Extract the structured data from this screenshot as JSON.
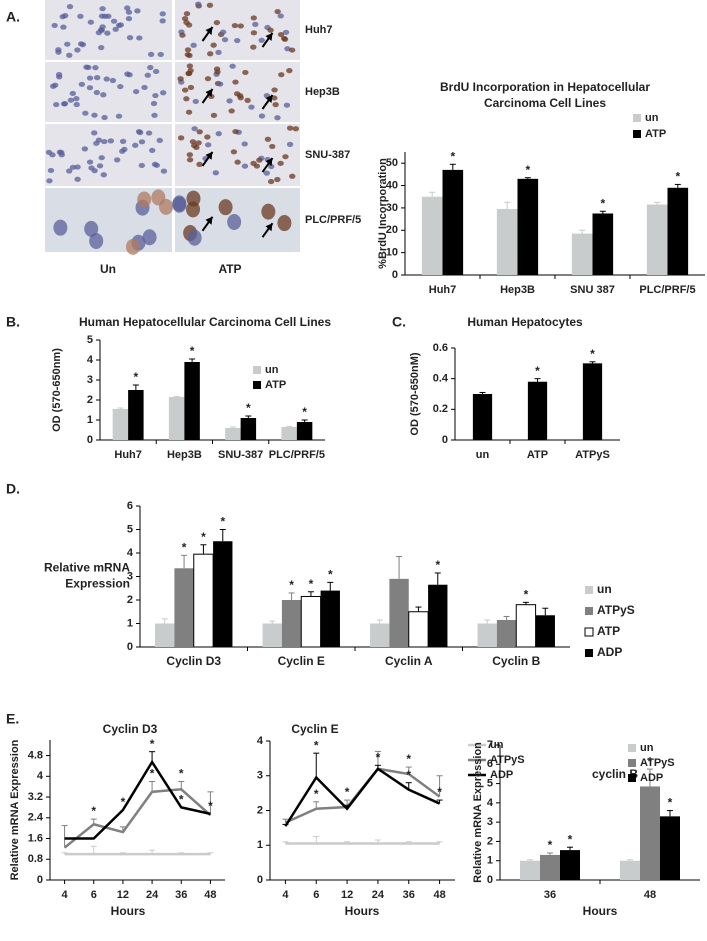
{
  "panel_labels": [
    "A.",
    "B.",
    "C.",
    "D.",
    "E."
  ],
  "micrographs": {
    "rows": [
      "Huh7",
      "Hep3B",
      "SNU-387",
      "PLC/PRF/5"
    ],
    "columns": [
      "Un",
      "ATP"
    ]
  },
  "chart_data": [
    {
      "type": "bar",
      "title": [
        "BrdU Incorporation in Hepatocellular",
        "Carcinoma Cell Lines"
      ],
      "ylabel": [
        "%BrdU Incorporation"
      ],
      "categories": [
        "Huh7",
        "Hep3B",
        "SNU 387",
        "PLC/PRF/5"
      ],
      "ylim": [
        0,
        55
      ],
      "yticks": [
        0,
        10,
        20,
        30,
        40,
        50
      ],
      "legend": "upper right",
      "significance_symbol": "*",
      "series": [
        {
          "name": "un",
          "color": "#c8cccc",
          "values": [
            35,
            29.5,
            18.5,
            31.5
          ],
          "errors": [
            2,
            3,
            1.5,
            1
          ],
          "significant": [
            false,
            false,
            false,
            false
          ]
        },
        {
          "name": "ATP",
          "color": "#000000",
          "values": [
            47,
            43,
            27.5,
            39
          ],
          "errors": [
            2.5,
            0.5,
            1,
            1.5
          ],
          "significant": [
            true,
            true,
            true,
            true
          ]
        }
      ]
    },
    {
      "type": "bar",
      "title": [
        "Human Hepatocellular Carcinoma Cell Lines"
      ],
      "ylabel": [
        "OD (570-650nm)"
      ],
      "categories": [
        "Huh7",
        "Hep3B",
        "SNU-387",
        "PLC/PRF/5"
      ],
      "ylim": [
        0,
        5
      ],
      "yticks": [
        0,
        1,
        2,
        3,
        4,
        5
      ],
      "legend": "right",
      "significance_symbol": "*",
      "series": [
        {
          "name": "un",
          "color": "#c8cccc",
          "values": [
            1.55,
            2.15,
            0.6,
            0.65
          ],
          "errors": [
            0.05,
            0.03,
            0.05,
            0.03
          ],
          "significant": [
            false,
            false,
            false,
            false
          ]
        },
        {
          "name": "ATP",
          "color": "#000000",
          "values": [
            2.5,
            3.9,
            1.1,
            0.9
          ],
          "errors": [
            0.25,
            0.15,
            0.1,
            0.1
          ],
          "significant": [
            true,
            true,
            true,
            true
          ]
        }
      ]
    },
    {
      "type": "bar",
      "title": [
        "Human Hepatocytes"
      ],
      "ylabel": [
        "OD (570-650nM)"
      ],
      "categories": [
        "un",
        "ATP",
        "ATPyS"
      ],
      "ylim": [
        0,
        0.6
      ],
      "yticks": [
        0,
        0.2,
        0.4,
        0.6
      ],
      "significance_symbol": "*",
      "color": "#000000",
      "values": [
        0.3,
        0.38,
        0.5
      ],
      "errors": [
        0.01,
        0.02,
        0.01
      ],
      "significant": [
        false,
        true,
        true
      ]
    },
    {
      "type": "bar",
      "ylabel": [
        "Relative mRNA",
        "Expression"
      ],
      "categories": [
        "Cyclin D3",
        "Cyclin E",
        "Cyclin A",
        "Cyclin B"
      ],
      "ylim": [
        0,
        6
      ],
      "yticks": [
        0,
        1,
        2,
        3,
        4,
        5,
        6
      ],
      "legend": "right",
      "significance_symbol": "*",
      "series": [
        {
          "name": "un",
          "color": "#c8cccc",
          "values": [
            1,
            1,
            1,
            1
          ],
          "errors": [
            0.2,
            0.1,
            0.15,
            0.15
          ],
          "significant": [
            false,
            false,
            false,
            false
          ]
        },
        {
          "name": "ATPyS",
          "color": "#808080",
          "values": [
            3.35,
            2.0,
            2.9,
            1.15
          ],
          "errors": [
            0.55,
            0.3,
            0.95,
            0.15
          ],
          "significant": [
            true,
            true,
            false,
            false
          ]
        },
        {
          "name": "ATP",
          "color": "#ffffff",
          "values": [
            3.95,
            2.15,
            1.5,
            1.8
          ],
          "errors": [
            0.4,
            0.2,
            0.2,
            0.1
          ],
          "significant": [
            true,
            true,
            false,
            true
          ]
        },
        {
          "name": "ADP",
          "color": "#000000",
          "values": [
            4.5,
            2.4,
            2.65,
            1.35
          ],
          "errors": [
            0.5,
            0.35,
            0.5,
            0.3
          ],
          "significant": [
            true,
            true,
            true,
            false
          ]
        }
      ]
    },
    {
      "type": "line",
      "title": [
        "Cyclin D3"
      ],
      "ylabel": [
        "Relative mRNA Expression"
      ],
      "xlabel": "Hours",
      "categories": [
        "4",
        "6",
        "12",
        "24",
        "36",
        "48"
      ],
      "ylim": [
        0,
        5.4
      ],
      "yticks": [
        0,
        0.8,
        1.6,
        2.4,
        3.2,
        4,
        4.8
      ],
      "significance_symbol": "*",
      "series": [
        {
          "name": "un",
          "color": "#c8cccc",
          "values": [
            1,
            1,
            1,
            1,
            1,
            1
          ],
          "errors": [
            0.05,
            0.3,
            0.05,
            0.15,
            0.05,
            0.05
          ],
          "significant": [
            false,
            false,
            false,
            false,
            false,
            false
          ]
        },
        {
          "name": "ATPyS",
          "color": "#808080",
          "values": [
            1.25,
            2.15,
            1.85,
            3.4,
            3.5,
            2.5
          ],
          "errors": [
            0.85,
            0.2,
            0.2,
            0.4,
            0.3,
            0.9
          ],
          "significant": [
            false,
            true,
            false,
            true,
            true,
            false
          ]
        },
        {
          "name": "ADP",
          "color": "#000000",
          "values": [
            1.6,
            1.6,
            2.7,
            4.55,
            2.8,
            2.55
          ],
          "errors": [
            0,
            0,
            0,
            0.4,
            0,
            0
          ],
          "significant": [
            false,
            false,
            true,
            true,
            true,
            true
          ]
        }
      ]
    },
    {
      "type": "line",
      "title": [
        "Cyclin E"
      ],
      "xlabel": "Hours",
      "categories": [
        "4",
        "6",
        "12",
        "24",
        "36",
        "48"
      ],
      "ylim": [
        0,
        4
      ],
      "yticks": [
        0,
        1,
        2,
        3,
        4
      ],
      "legend": "upper right",
      "significance_symbol": "*",
      "series": [
        {
          "name": "un",
          "color": "#c8cccc",
          "values": [
            1.05,
            1.05,
            1.05,
            1.05,
            1.05,
            1.05
          ],
          "errors": [
            0.05,
            0.2,
            0.05,
            0.1,
            0.05,
            0.05
          ],
          "significant": [
            false,
            false,
            false,
            false,
            false,
            false
          ]
        },
        {
          "name": "ATPyS",
          "color": "#808080",
          "values": [
            1.65,
            2.05,
            2.1,
            3.2,
            3.05,
            2.4
          ],
          "errors": [
            0.1,
            0.2,
            0.2,
            0.5,
            0.2,
            0.6
          ],
          "significant": [
            false,
            true,
            true,
            false,
            true,
            false
          ]
        },
        {
          "name": "ADP",
          "color": "#000000",
          "values": [
            1.55,
            2.95,
            2.05,
            3.2,
            2.6,
            2.2
          ],
          "errors": [
            0.05,
            0.7,
            0.1,
            0.1,
            0.2,
            0.1
          ],
          "significant": [
            false,
            true,
            false,
            true,
            true,
            true
          ]
        }
      ]
    },
    {
      "type": "bar",
      "title": [
        "cyclin B"
      ],
      "ylabel": [
        "Relative mRNA Expression"
      ],
      "xlabel": "Hours",
      "categories": [
        "36",
        "48"
      ],
      "ylim": [
        0,
        7
      ],
      "yticks": [
        0,
        1,
        2,
        3,
        4,
        5,
        6,
        7
      ],
      "legend": "upper right",
      "significance_symbol": "*",
      "series": [
        {
          "name": "un",
          "color": "#c8cccc",
          "values": [
            1,
            1
          ],
          "errors": [
            0.05,
            0.05
          ],
          "significant": [
            false,
            false
          ]
        },
        {
          "name": "ATPyS",
          "color": "#808080",
          "values": [
            1.3,
            4.85
          ],
          "errors": [
            0.1,
            0.9
          ],
          "significant": [
            true,
            true
          ]
        },
        {
          "name": "ADP",
          "color": "#000000",
          "values": [
            1.55,
            3.3
          ],
          "errors": [
            0.15,
            0.3
          ],
          "significant": [
            true,
            true
          ]
        }
      ]
    }
  ]
}
